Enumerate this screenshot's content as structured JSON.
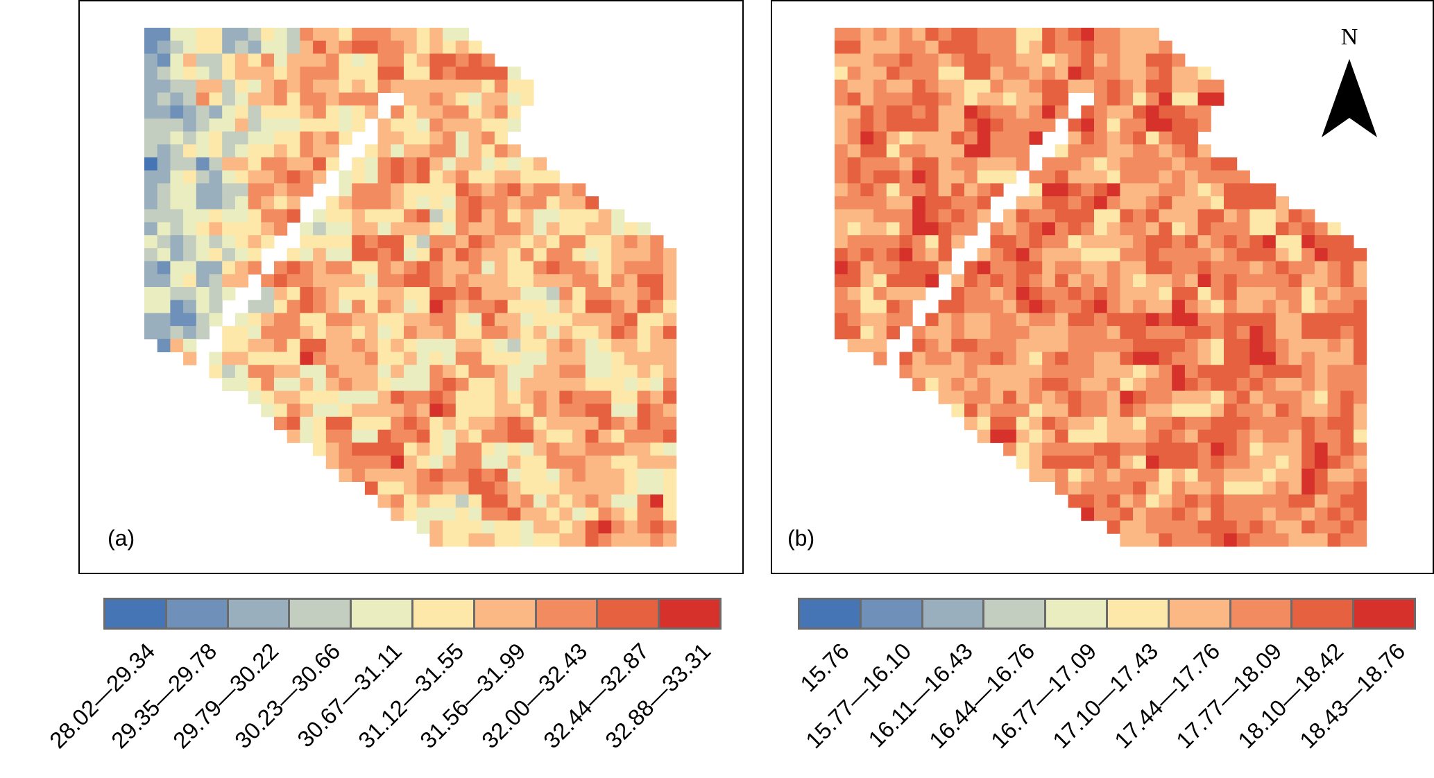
{
  "chart_data": [
    {
      "type": "heatmap",
      "panel_label": "(a)",
      "legend_classes": [
        "28.02—29.34",
        "29.35—29.78",
        "29.79—30.22",
        "30.23—30.66",
        "30.67—31.11",
        "31.12—31.55",
        "31.56—31.99",
        "32.00—32.43",
        "32.44—32.87",
        "32.88—33.31"
      ]
    },
    {
      "type": "heatmap",
      "panel_label": "(b)",
      "legend_classes": [
        "15.76",
        "15.77—16.10",
        "16.11—16.43",
        "16.44—16.76",
        "16.77—17.09",
        "17.10—17.43",
        "17.44—17.76",
        "17.77—18.09",
        "18.10—18.42",
        "18.43—18.76"
      ]
    }
  ],
  "colors": [
    "#4575b4",
    "#6f90b8",
    "#9aafbd",
    "#c3cdc0",
    "#e9edc0",
    "#fee8a9",
    "#fbb884",
    "#f28c60",
    "#e5613f",
    "#d6312b"
  ],
  "north_label": "N"
}
